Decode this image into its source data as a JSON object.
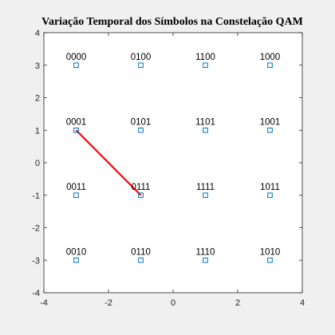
{
  "chart_data": {
    "type": "scatter",
    "title": "Variação Temporal dos Símbolos na Constelação QAM",
    "xlabel": "",
    "ylabel": "",
    "xlim": [
      -4,
      4
    ],
    "ylim": [
      -4,
      4
    ],
    "xticks": [
      "-4",
      "-2",
      "0",
      "2",
      "4"
    ],
    "yticks": [
      "-4",
      "-3",
      "-2",
      "-1",
      "0",
      "1",
      "2",
      "3",
      "4"
    ],
    "grid": false,
    "marker_color": "#0072BD",
    "trajectory_color": "#FF0000",
    "points": [
      {
        "label": "0000",
        "x": -3,
        "y": 3
      },
      {
        "label": "0100",
        "x": -1,
        "y": 3
      },
      {
        "label": "1100",
        "x": 1,
        "y": 3
      },
      {
        "label": "1000",
        "x": 3,
        "y": 3
      },
      {
        "label": "0001",
        "x": -3,
        "y": 1
      },
      {
        "label": "0101",
        "x": -1,
        "y": 1
      },
      {
        "label": "1101",
        "x": 1,
        "y": 1
      },
      {
        "label": "1001",
        "x": 3,
        "y": 1
      },
      {
        "label": "0011",
        "x": -3,
        "y": -1
      },
      {
        "label": "0111",
        "x": -1,
        "y": -1
      },
      {
        "label": "1111",
        "x": 1,
        "y": -1
      },
      {
        "label": "1011",
        "x": 3,
        "y": -1
      },
      {
        "label": "0010",
        "x": -3,
        "y": -3
      },
      {
        "label": "0110",
        "x": -1,
        "y": -3
      },
      {
        "label": "1110",
        "x": 1,
        "y": -3
      },
      {
        "label": "1010",
        "x": 3,
        "y": -3
      }
    ],
    "trajectory": [
      {
        "x": -3,
        "y": 1
      },
      {
        "x": -1,
        "y": -1
      }
    ]
  }
}
